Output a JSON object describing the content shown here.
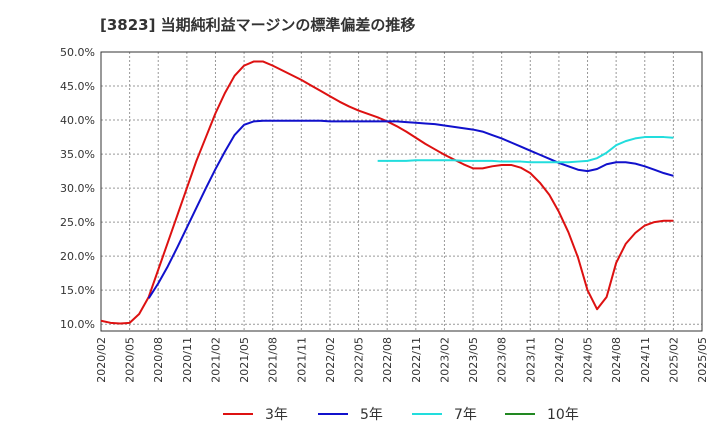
{
  "chart_data": {
    "type": "line",
    "title": "[3823]  当期純利益マージンの標準偏差の推移",
    "xlabel": "",
    "ylabel": "",
    "ylim": [
      9.0,
      50.0
    ],
    "yticks": [
      "10.0%",
      "15.0%",
      "20.0%",
      "25.0%",
      "30.0%",
      "35.0%",
      "40.0%",
      "45.0%",
      "50.0%"
    ],
    "ytick_values": [
      10,
      15,
      20,
      25,
      30,
      35,
      40,
      45,
      50
    ],
    "xticks": [
      "2020/02",
      "2020/05",
      "2020/08",
      "2020/11",
      "2021/02",
      "2021/05",
      "2021/08",
      "2021/11",
      "2022/02",
      "2022/05",
      "2022/08",
      "2022/11",
      "2023/02",
      "2023/05",
      "2023/08",
      "2023/11",
      "2024/02",
      "2024/05",
      "2024/08",
      "2024/11",
      "2025/02",
      "2025/05"
    ],
    "grid": true,
    "legend_position": "bottom",
    "series": [
      {
        "name": "3年",
        "color": "#dd1111",
        "points": [
          [
            "2020/02",
            10.5
          ],
          [
            "2020/03",
            10.2
          ],
          [
            "2020/04",
            10.1
          ],
          [
            "2020/05",
            10.2
          ],
          [
            "2020/06",
            11.5
          ],
          [
            "2020/07",
            14.0
          ],
          [
            "2020/08",
            18.0
          ],
          [
            "2020/09",
            22.0
          ],
          [
            "2020/10",
            26.0
          ],
          [
            "2020/11",
            30.0
          ],
          [
            "2020/12",
            34.0
          ],
          [
            "2021/01",
            37.5
          ],
          [
            "2021/02",
            41.0
          ],
          [
            "2021/03",
            44.0
          ],
          [
            "2021/04",
            46.5
          ],
          [
            "2021/05",
            48.0
          ],
          [
            "2021/06",
            48.6
          ],
          [
            "2021/07",
            48.6
          ],
          [
            "2021/08",
            48.0
          ],
          [
            "2021/09",
            47.3
          ],
          [
            "2021/10",
            46.6
          ],
          [
            "2021/11",
            45.9
          ],
          [
            "2021/12",
            45.1
          ],
          [
            "2022/01",
            44.3
          ],
          [
            "2022/02",
            43.5
          ],
          [
            "2022/03",
            42.7
          ],
          [
            "2022/04",
            42.0
          ],
          [
            "2022/05",
            41.4
          ],
          [
            "2022/06",
            40.9
          ],
          [
            "2022/07",
            40.4
          ],
          [
            "2022/08",
            39.8
          ],
          [
            "2022/09",
            39.1
          ],
          [
            "2022/10",
            38.3
          ],
          [
            "2022/11",
            37.4
          ],
          [
            "2022/12",
            36.5
          ],
          [
            "2023/01",
            35.7
          ],
          [
            "2023/02",
            34.9
          ],
          [
            "2023/03",
            34.2
          ],
          [
            "2023/04",
            33.5
          ],
          [
            "2023/05",
            32.9
          ],
          [
            "2023/06",
            32.9
          ],
          [
            "2023/07",
            33.2
          ],
          [
            "2023/08",
            33.4
          ],
          [
            "2023/09",
            33.4
          ],
          [
            "2023/10",
            33.0
          ],
          [
            "2023/11",
            32.2
          ],
          [
            "2023/12",
            30.8
          ],
          [
            "2024/01",
            29.0
          ],
          [
            "2024/02",
            26.5
          ],
          [
            "2024/03",
            23.5
          ],
          [
            "2024/04",
            19.8
          ],
          [
            "2024/05",
            15.0
          ],
          [
            "2024/06",
            12.2
          ],
          [
            "2024/07",
            14.0
          ],
          [
            "2024/08",
            19.0
          ],
          [
            "2024/09",
            21.8
          ],
          [
            "2024/10",
            23.4
          ],
          [
            "2024/11",
            24.5
          ],
          [
            "2024/12",
            25.0
          ],
          [
            "2025/01",
            25.2
          ],
          [
            "2025/02",
            25.2
          ]
        ]
      },
      {
        "name": "5年",
        "color": "#1111cc",
        "points": [
          [
            "2020/07",
            13.8
          ],
          [
            "2020/08",
            16.0
          ],
          [
            "2020/09",
            18.5
          ],
          [
            "2020/10",
            21.3
          ],
          [
            "2020/11",
            24.2
          ],
          [
            "2020/12",
            27.1
          ],
          [
            "2021/01",
            30.0
          ],
          [
            "2021/02",
            32.8
          ],
          [
            "2021/03",
            35.4
          ],
          [
            "2021/04",
            37.8
          ],
          [
            "2021/05",
            39.3
          ],
          [
            "2021/06",
            39.8
          ],
          [
            "2021/07",
            39.9
          ],
          [
            "2021/08",
            39.9
          ],
          [
            "2021/09",
            39.9
          ],
          [
            "2021/10",
            39.9
          ],
          [
            "2021/11",
            39.9
          ],
          [
            "2021/12",
            39.9
          ],
          [
            "2022/01",
            39.9
          ],
          [
            "2022/02",
            39.8
          ],
          [
            "2022/03",
            39.8
          ],
          [
            "2022/04",
            39.8
          ],
          [
            "2022/05",
            39.8
          ],
          [
            "2022/06",
            39.8
          ],
          [
            "2022/07",
            39.8
          ],
          [
            "2022/08",
            39.8
          ],
          [
            "2022/09",
            39.8
          ],
          [
            "2022/10",
            39.7
          ],
          [
            "2022/11",
            39.6
          ],
          [
            "2022/12",
            39.5
          ],
          [
            "2023/01",
            39.4
          ],
          [
            "2023/02",
            39.2
          ],
          [
            "2023/03",
            39.0
          ],
          [
            "2023/04",
            38.8
          ],
          [
            "2023/05",
            38.6
          ],
          [
            "2023/06",
            38.3
          ],
          [
            "2023/07",
            37.8
          ],
          [
            "2023/08",
            37.3
          ],
          [
            "2023/09",
            36.7
          ],
          [
            "2023/10",
            36.1
          ],
          [
            "2023/11",
            35.5
          ],
          [
            "2023/12",
            34.9
          ],
          [
            "2024/01",
            34.3
          ],
          [
            "2024/02",
            33.7
          ],
          [
            "2024/03",
            33.2
          ],
          [
            "2024/04",
            32.7
          ],
          [
            "2024/05",
            32.5
          ],
          [
            "2024/06",
            32.8
          ],
          [
            "2024/07",
            33.5
          ],
          [
            "2024/08",
            33.8
          ],
          [
            "2024/09",
            33.8
          ],
          [
            "2024/10",
            33.6
          ],
          [
            "2024/11",
            33.2
          ],
          [
            "2024/12",
            32.7
          ],
          [
            "2025/01",
            32.2
          ],
          [
            "2025/02",
            31.8
          ]
        ]
      },
      {
        "name": "7年",
        "color": "#22dddd",
        "points": [
          [
            "2022/07",
            34.0
          ],
          [
            "2022/08",
            34.0
          ],
          [
            "2022/09",
            34.0
          ],
          [
            "2022/10",
            34.0
          ],
          [
            "2022/11",
            34.1
          ],
          [
            "2022/12",
            34.1
          ],
          [
            "2023/01",
            34.1
          ],
          [
            "2023/02",
            34.1
          ],
          [
            "2023/03",
            34.1
          ],
          [
            "2023/04",
            34.0
          ],
          [
            "2023/05",
            34.0
          ],
          [
            "2023/06",
            34.0
          ],
          [
            "2023/07",
            34.0
          ],
          [
            "2023/08",
            33.9
          ],
          [
            "2023/09",
            33.9
          ],
          [
            "2023/10",
            33.9
          ],
          [
            "2023/11",
            33.8
          ],
          [
            "2023/12",
            33.8
          ],
          [
            "2024/01",
            33.8
          ],
          [
            "2024/02",
            33.8
          ],
          [
            "2024/03",
            33.8
          ],
          [
            "2024/04",
            33.9
          ],
          [
            "2024/05",
            34.0
          ],
          [
            "2024/06",
            34.4
          ],
          [
            "2024/07",
            35.2
          ],
          [
            "2024/08",
            36.3
          ],
          [
            "2024/09",
            36.9
          ],
          [
            "2024/10",
            37.3
          ],
          [
            "2024/11",
            37.5
          ],
          [
            "2024/12",
            37.5
          ],
          [
            "2025/01",
            37.5
          ],
          [
            "2025/02",
            37.4
          ]
        ]
      },
      {
        "name": "10年",
        "color": "#228822",
        "points": []
      }
    ]
  }
}
